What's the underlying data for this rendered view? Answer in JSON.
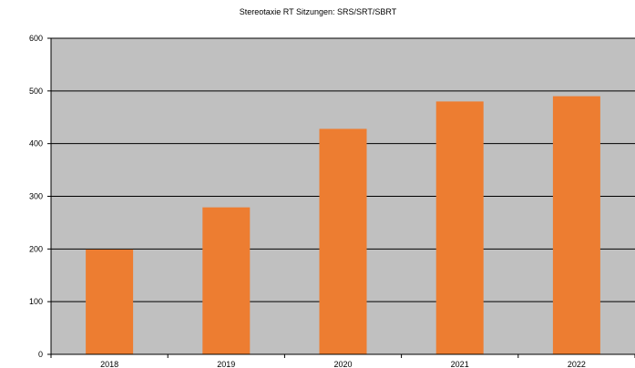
{
  "chart_data": {
    "type": "bar",
    "title": "Stereotaxie RT Sitzungen: SRS/SRT/SBRT",
    "categories": [
      "2018",
      "2019",
      "2020",
      "2021",
      "2022"
    ],
    "series": [
      {
        "values": [
          199,
          279,
          428,
          480,
          490
        ]
      }
    ],
    "ylim": [
      0,
      600
    ],
    "yticks": [
      0,
      100,
      200,
      300,
      400,
      500,
      600
    ],
    "xlabel": "",
    "ylabel": "",
    "grid": "horizontal",
    "legend": "none",
    "colors": {
      "bar": "#ed7d31",
      "plot_background": "#c0c0c0",
      "gridline": "#000000",
      "axis": "#000000"
    }
  }
}
